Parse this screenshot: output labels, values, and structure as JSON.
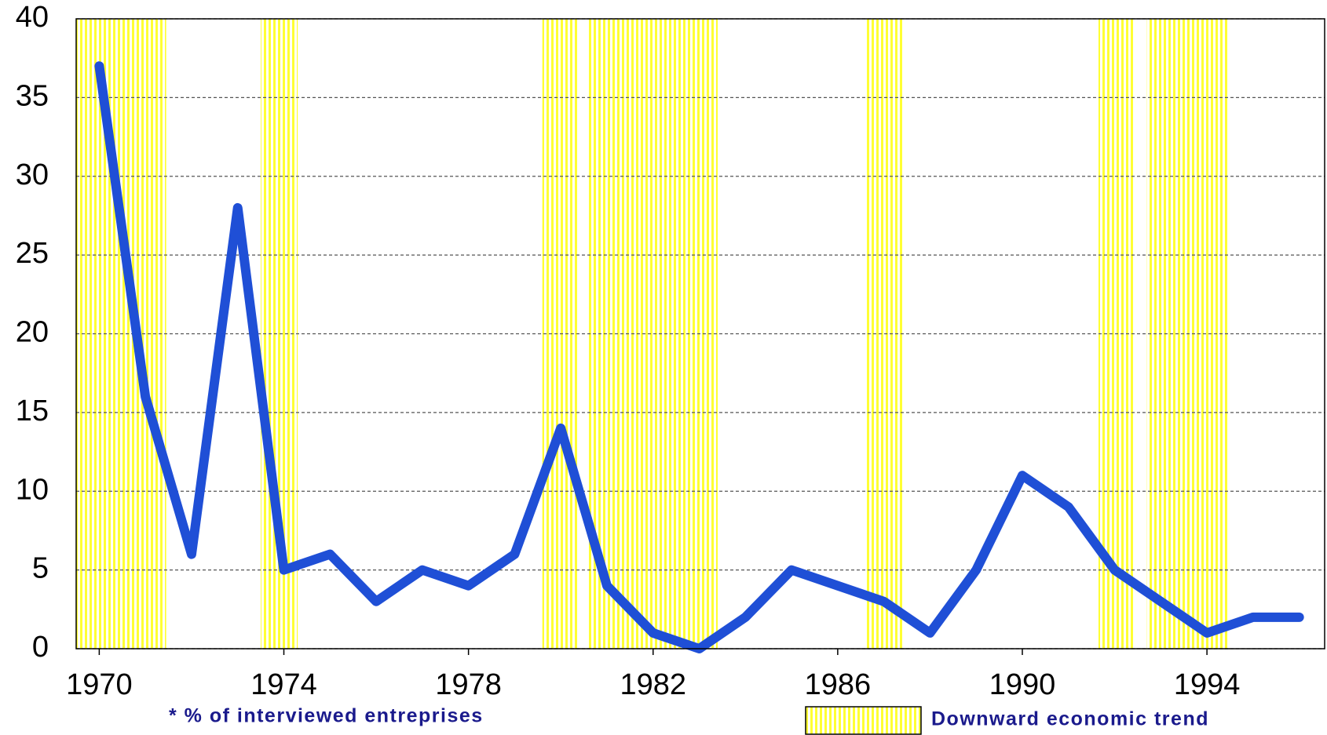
{
  "chart_data": {
    "type": "line",
    "x": [
      1970,
      1971,
      1972,
      1973,
      1974,
      1975,
      1976,
      1977,
      1978,
      1979,
      1980,
      1981,
      1982,
      1983,
      1984,
      1985,
      1986,
      1987,
      1988,
      1989,
      1990,
      1991,
      1992,
      1993,
      1994,
      1995,
      1996
    ],
    "values": [
      37,
      16,
      6,
      28,
      5,
      6,
      3,
      5,
      4,
      6,
      14,
      4,
      1,
      0,
      2,
      5,
      4,
      3,
      1,
      5,
      11,
      9,
      5,
      3,
      1,
      2,
      2
    ],
    "color": "#1f4fd6",
    "xlim": [
      1969.5,
      1996.55
    ],
    "xticks": [
      1970,
      1974,
      1978,
      1982,
      1986,
      1990,
      1994
    ],
    "ylim": [
      0,
      40
    ],
    "yticks": [
      0,
      5,
      10,
      15,
      20,
      25,
      30,
      35,
      40
    ],
    "grid": true,
    "shaded_periods": [
      [
        1969.5,
        1971.45
      ],
      [
        1973.5,
        1974.3
      ],
      [
        1979.6,
        1980.4
      ],
      [
        1980.6,
        1983.4
      ],
      [
        1986.6,
        1987.4
      ],
      [
        1991.65,
        1992.45
      ],
      [
        1992.7,
        1994.45
      ]
    ],
    "shaded_color": "#ffff33",
    "shaded_label": "Downward economic trend",
    "footnote": "* % of interviewed entreprises"
  }
}
